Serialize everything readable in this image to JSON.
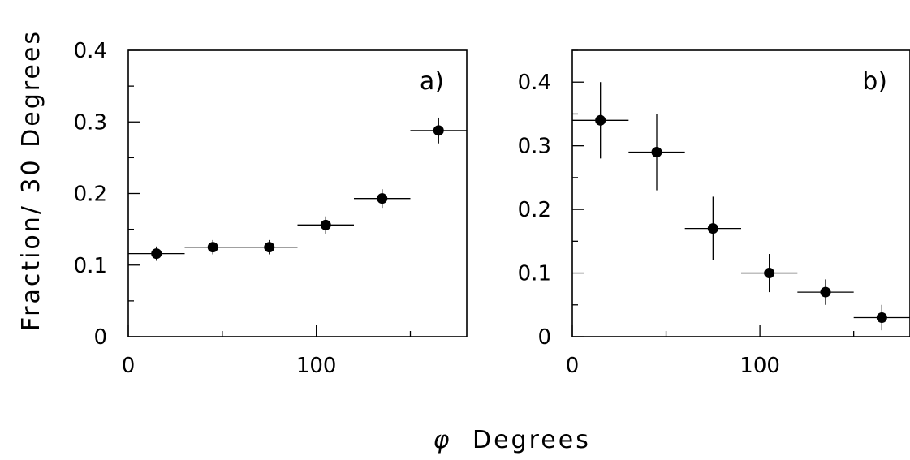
{
  "figure": {
    "ylabel": "Fraction/ 30 Degrees",
    "xlabel_symbol": "φ",
    "xlabel_text": "Degrees"
  },
  "chart_data": [
    {
      "type": "scatter",
      "panel_label": "a)",
      "xlim": [
        0,
        180
      ],
      "ylim": [
        0,
        0.4
      ],
      "x_ticks": [
        0,
        100
      ],
      "y_ticks": [
        0,
        0.1,
        0.2,
        0.3,
        0.4
      ],
      "x_tick_labels": [
        "0",
        "100"
      ],
      "y_tick_labels": [
        "0",
        "0.1",
        "0.2",
        "0.3",
        "0.4"
      ],
      "points": [
        {
          "x": 15,
          "y": 0.116,
          "xerr": 15,
          "yerr": 0.01
        },
        {
          "x": 45,
          "y": 0.125,
          "xerr": 15,
          "yerr": 0.01
        },
        {
          "x": 75,
          "y": 0.125,
          "xerr": 15,
          "yerr": 0.01
        },
        {
          "x": 105,
          "y": 0.156,
          "xerr": 15,
          "yerr": 0.012
        },
        {
          "x": 135,
          "y": 0.193,
          "xerr": 15,
          "yerr": 0.013
        },
        {
          "x": 165,
          "y": 0.288,
          "xerr": 15,
          "yerr": 0.018
        }
      ]
    },
    {
      "type": "scatter",
      "panel_label": "b)",
      "xlim": [
        0,
        180
      ],
      "ylim": [
        0,
        0.45
      ],
      "x_ticks": [
        0,
        100
      ],
      "y_ticks": [
        0,
        0.1,
        0.2,
        0.3,
        0.4
      ],
      "x_tick_labels": [
        "0",
        "100"
      ],
      "y_tick_labels": [
        "0",
        "0.1",
        "0.2",
        "0.3",
        "0.4"
      ],
      "points": [
        {
          "x": 15,
          "y": 0.34,
          "xerr": 15,
          "yerr": 0.06
        },
        {
          "x": 45,
          "y": 0.29,
          "xerr": 15,
          "yerr": 0.06
        },
        {
          "x": 75,
          "y": 0.17,
          "xerr": 15,
          "yerr": 0.05
        },
        {
          "x": 105,
          "y": 0.1,
          "xerr": 15,
          "yerr": 0.03
        },
        {
          "x": 135,
          "y": 0.07,
          "xerr": 15,
          "yerr": 0.02
        },
        {
          "x": 165,
          "y": 0.03,
          "xerr": 15,
          "yerr": 0.02
        }
      ]
    }
  ]
}
